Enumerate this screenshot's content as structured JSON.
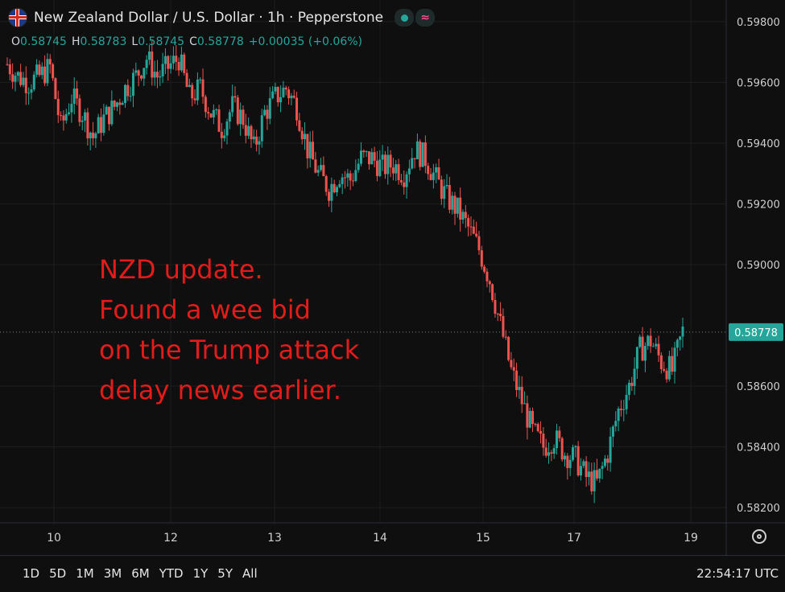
{
  "header": {
    "title": "New Zealand Dollar / U.S. Dollar · 1h · Pepperstone",
    "ohlc": [
      {
        "label": "O",
        "value": "0.58745"
      },
      {
        "label": "H",
        "value": "0.58783"
      },
      {
        "label": "L",
        "value": "0.58745"
      },
      {
        "label": "C",
        "value": "0.58778"
      },
      {
        "label": "",
        "value": "+0.00035 (+0.06%)"
      }
    ]
  },
  "annotation": {
    "lines": [
      "NZD update.",
      "Found a wee bid",
      "on the Trump attack",
      "delay news earlier."
    ],
    "color": "#e31b1b"
  },
  "bottom": {
    "ranges": [
      "1D",
      "5D",
      "1M",
      "3M",
      "6M",
      "YTD",
      "1Y",
      "5Y",
      "All"
    ],
    "clock": "22:54:17 UTC"
  },
  "colors": {
    "up": "#26a69a",
    "down": "#ef5350",
    "background": "#0f0f0f",
    "grid": "#1e1e1e",
    "last_price_tag": "#26a69a"
  },
  "chart_data": {
    "type": "candlestick",
    "symbol": "NZDUSD",
    "interval": "1h",
    "x_ticks": [
      "10",
      "12",
      "13",
      "14",
      "15",
      "17",
      "19"
    ],
    "y_ticks": [
      "0.59800",
      "0.59600",
      "0.59400",
      "0.59200",
      "0.59000",
      "0.58600",
      "0.58400",
      "0.58200"
    ],
    "ylim": [
      0.5815,
      0.5985
    ],
    "last_price": "0.58778",
    "grid": true,
    "path": [
      [
        0,
        0.5966
      ],
      [
        4,
        0.5962
      ],
      [
        8,
        0.596
      ],
      [
        12,
        0.5962
      ],
      [
        16,
        0.5965
      ],
      [
        20,
        0.5945
      ],
      [
        24,
        0.5955
      ],
      [
        28,
        0.595
      ],
      [
        32,
        0.5942
      ],
      [
        36,
        0.5948
      ],
      [
        40,
        0.5952
      ],
      [
        44,
        0.5958
      ],
      [
        48,
        0.5962
      ],
      [
        52,
        0.5968
      ],
      [
        56,
        0.5962
      ],
      [
        60,
        0.5965
      ],
      [
        64,
        0.5968
      ],
      [
        68,
        0.5955
      ],
      [
        72,
        0.5958
      ],
      [
        76,
        0.595
      ],
      [
        80,
        0.5945
      ],
      [
        84,
        0.5952
      ],
      [
        88,
        0.5948
      ],
      [
        92,
        0.5938
      ],
      [
        96,
        0.595
      ],
      [
        100,
        0.5955
      ],
      [
        104,
        0.5958
      ],
      [
        108,
        0.5952
      ],
      [
        112,
        0.5938
      ],
      [
        116,
        0.593
      ],
      [
        120,
        0.5925
      ],
      [
        124,
        0.593
      ],
      [
        128,
        0.5928
      ],
      [
        132,
        0.5935
      ],
      [
        136,
        0.5935
      ],
      [
        140,
        0.5932
      ],
      [
        144,
        0.5933
      ],
      [
        148,
        0.593
      ],
      [
        152,
        0.5938
      ],
      [
        156,
        0.5935
      ],
      [
        160,
        0.5928
      ],
      [
        164,
        0.5922
      ],
      [
        168,
        0.5918
      ],
      [
        172,
        0.5912
      ],
      [
        176,
        0.5905
      ],
      [
        180,
        0.5895
      ],
      [
        184,
        0.588
      ],
      [
        188,
        0.5865
      ],
      [
        192,
        0.5855
      ],
      [
        196,
        0.5845
      ],
      [
        200,
        0.584
      ],
      [
        204,
        0.5843
      ],
      [
        208,
        0.5838
      ],
      [
        212,
        0.5836
      ],
      [
        216,
        0.583
      ],
      [
        220,
        0.5828
      ],
      [
        224,
        0.5838
      ],
      [
        228,
        0.5852
      ],
      [
        232,
        0.586
      ],
      [
        236,
        0.5872
      ],
      [
        240,
        0.5875
      ],
      [
        244,
        0.5868
      ],
      [
        248,
        0.5865
      ],
      [
        252,
        0.5878
      ]
    ]
  }
}
